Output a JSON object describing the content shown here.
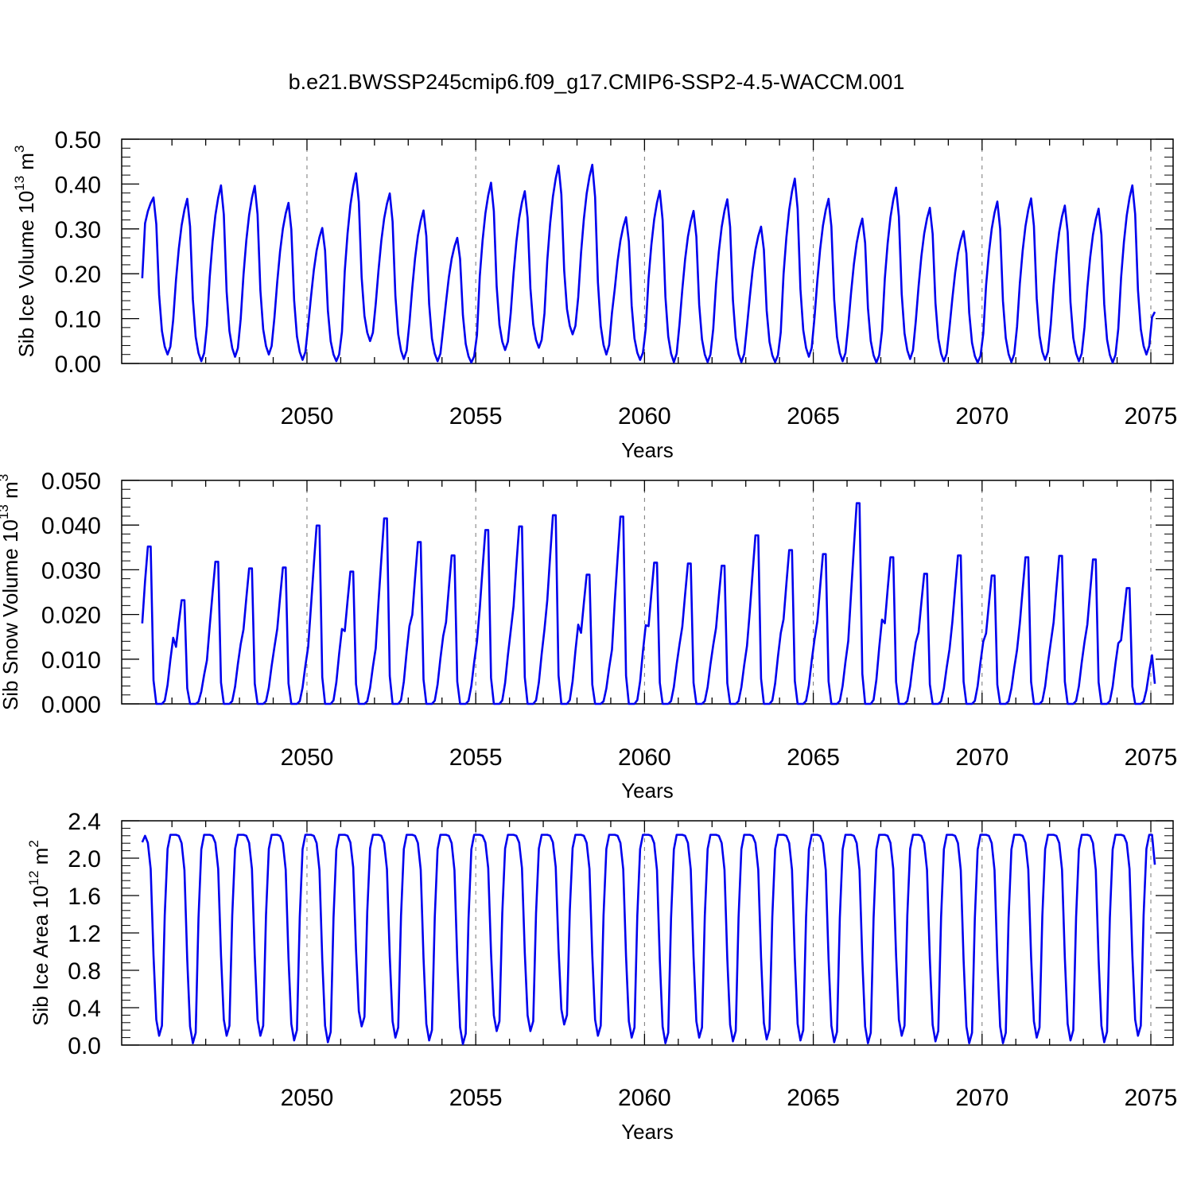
{
  "title": "b.e21.BWSSP245cmip6.f09_g17.CMIP6-SSP2-4.5-WACCM.001",
  "chart_data": [
    {
      "type": "line",
      "name": "sib-ice-volume",
      "xlabel": "Years",
      "ylabel": {
        "prefix": "Sib Ice Volume 10",
        "exp": "13",
        "unit": " m",
        "unit_exp": "3"
      },
      "xlim": [
        2045.1,
        2075.0
      ],
      "ylim": [
        0.0,
        0.5
      ],
      "x_ticks": [
        2050,
        2055,
        2060,
        2065,
        2070,
        2075
      ],
      "x_tick_labels": [
        "2050",
        "2055",
        "2060",
        "2065",
        "2070",
        "2075"
      ],
      "y_ticks": [
        0.0,
        0.1,
        0.2,
        0.3,
        0.4,
        0.5
      ],
      "y_tick_labels": [
        "0.00",
        "0.10",
        "0.20",
        "0.30",
        "0.40",
        "0.50"
      ],
      "grid": "vertical dashed at major x ticks",
      "color": "#0000ee",
      "series": [
        {
          "name": "Sib Ice Volume",
          "x_start": 2045.12,
          "x_step": 0.08333,
          "annual_peaks": [
            0.37,
            0.367,
            0.397,
            0.396,
            0.358,
            0.302,
            0.424,
            0.379,
            0.341,
            0.28,
            0.403,
            0.384,
            0.441,
            0.443,
            0.326,
            0.385,
            0.34,
            0.366,
            0.305,
            0.412,
            0.367,
            0.323,
            0.392,
            0.347,
            0.295,
            0.361,
            0.368,
            0.352,
            0.345,
            0.397
          ],
          "annual_minima": [
            0.02,
            0.005,
            0.015,
            0.02,
            0.008,
            0.005,
            0.05,
            0.01,
            0.005,
            0.002,
            0.03,
            0.035,
            0.065,
            0.02,
            0.008,
            0.003,
            0.003,
            0.003,
            0.003,
            0.015,
            0.005,
            0.002,
            0.01,
            0.005,
            0.002,
            0.003,
            0.008,
            0.005,
            0.002,
            0.02
          ],
          "start_value": 0.19,
          "end_value": 0.115
        }
      ]
    },
    {
      "type": "line",
      "name": "sib-snow-volume",
      "xlabel": "Years",
      "ylabel": {
        "prefix": "Sib Snow Volume 10",
        "exp": "13",
        "unit": " m",
        "unit_exp": "3"
      },
      "xlim": [
        2045.1,
        2075.0
      ],
      "ylim": [
        0.0,
        0.05
      ],
      "x_ticks": [
        2050,
        2055,
        2060,
        2065,
        2070,
        2075
      ],
      "x_tick_labels": [
        "2050",
        "2055",
        "2060",
        "2065",
        "2070",
        "2075"
      ],
      "y_ticks": [
        0.0,
        0.01,
        0.02,
        0.03,
        0.04,
        0.05
      ],
      "y_tick_labels": [
        "0.000",
        "0.010",
        "0.020",
        "0.030",
        "0.040",
        "0.050"
      ],
      "grid": "vertical dashed at major x ticks",
      "color": "#0000ee",
      "series": [
        {
          "name": "Sib Snow Volume",
          "x_start": 2045.12,
          "x_step": 0.08333,
          "annual_peaks": [
            0.0352,
            0.0232,
            0.0318,
            0.0303,
            0.0305,
            0.0399,
            0.0296,
            0.0415,
            0.0362,
            0.0332,
            0.0389,
            0.0397,
            0.0422,
            0.0289,
            0.0419,
            0.0316,
            0.0314,
            0.0309,
            0.0377,
            0.0344,
            0.0335,
            0.0449,
            0.0328,
            0.0291,
            0.0332,
            0.0287,
            0.0328,
            0.0331,
            0.0323,
            0.0259
          ],
          "start_value": 0.018,
          "end_value": 0.0045
        }
      ]
    },
    {
      "type": "line",
      "name": "sib-ice-area",
      "xlabel": "Years",
      "ylabel": {
        "prefix": "Sib Ice Area 10",
        "exp": "12",
        "unit": " m",
        "unit_exp": "2"
      },
      "xlim": [
        2045.1,
        2075.0
      ],
      "ylim": [
        0.0,
        2.4
      ],
      "x_ticks": [
        2050,
        2055,
        2060,
        2065,
        2070,
        2075
      ],
      "x_tick_labels": [
        "2050",
        "2055",
        "2060",
        "2065",
        "2070",
        "2075"
      ],
      "y_ticks": [
        0.0,
        0.4,
        0.8,
        1.2,
        1.6,
        2.0,
        2.4
      ],
      "y_tick_labels": [
        "0.0",
        "0.4",
        "0.8",
        "1.2",
        "1.6",
        "2.0",
        "2.4"
      ],
      "grid": "vertical dashed at major x ticks",
      "color": "#0000ee",
      "series": [
        {
          "name": "Sib Ice Area",
          "x_start": 2045.12,
          "x_step": 0.08333,
          "annual_max": 2.25,
          "annual_minima": [
            0.1,
            0.02,
            0.1,
            0.1,
            0.05,
            0.03,
            0.2,
            0.08,
            0.05,
            0.01,
            0.15,
            0.15,
            0.22,
            0.1,
            0.08,
            0.02,
            0.08,
            0.04,
            0.06,
            0.05,
            0.03,
            0.02,
            0.1,
            0.04,
            0.02,
            0.02,
            0.08,
            0.05,
            0.03,
            0.1
          ],
          "start_value": 2.17,
          "end_value": 1.93
        }
      ]
    }
  ]
}
